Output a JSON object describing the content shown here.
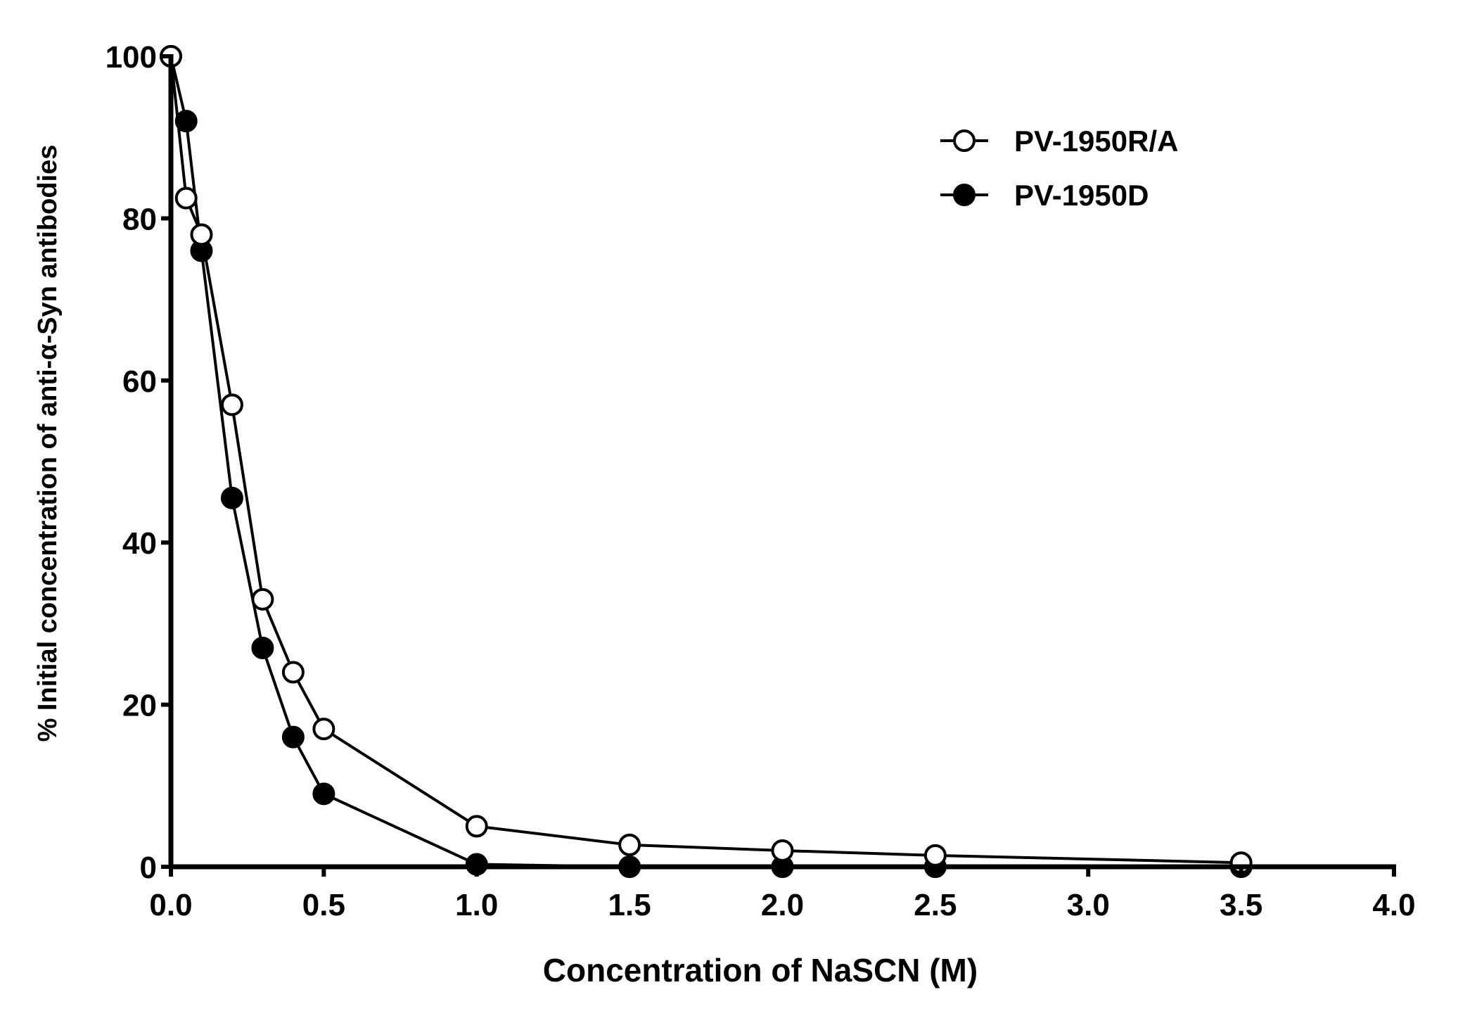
{
  "chart_data": {
    "type": "line",
    "title": "",
    "xlabel": "Concentration of NaSCN (M)",
    "ylabel": "% Initial concentration of anti-α-Syn antibodies",
    "xlim": [
      0,
      4
    ],
    "ylim": [
      0,
      100
    ],
    "xticks": [
      0,
      0.5,
      1,
      1.5,
      2,
      2.5,
      3,
      3.5,
      4
    ],
    "xtick_labels": [
      "0.0",
      "0.5",
      "1.0",
      "1.5",
      "2.0",
      "2.5",
      "3.0",
      "3.5",
      "4.0"
    ],
    "yticks": [
      0,
      20,
      40,
      60,
      80,
      100
    ],
    "ytick_labels": [
      "0",
      "20",
      "40",
      "60",
      "80",
      "100"
    ],
    "grid": false,
    "legend_position": "top-right",
    "series": [
      {
        "name": "PV-1950R/A",
        "marker": "open-circle",
        "x": [
          0,
          0.05,
          0.1,
          0.2,
          0.3,
          0.4,
          0.5,
          1.0,
          1.5,
          2.0,
          2.5,
          3.5
        ],
        "y": [
          100,
          82.5,
          78,
          57,
          33,
          24,
          17,
          5,
          2.7,
          2,
          1.4,
          0.5
        ]
      },
      {
        "name": "PV-1950D",
        "marker": "filled-circle",
        "x": [
          0,
          0.05,
          0.1,
          0.2,
          0.3,
          0.4,
          0.5,
          1.0,
          1.5,
          2.0,
          2.5,
          3.5
        ],
        "y": [
          100,
          92,
          76,
          45.5,
          27,
          16,
          9,
          0.3,
          0,
          0,
          0,
          0
        ]
      }
    ]
  }
}
